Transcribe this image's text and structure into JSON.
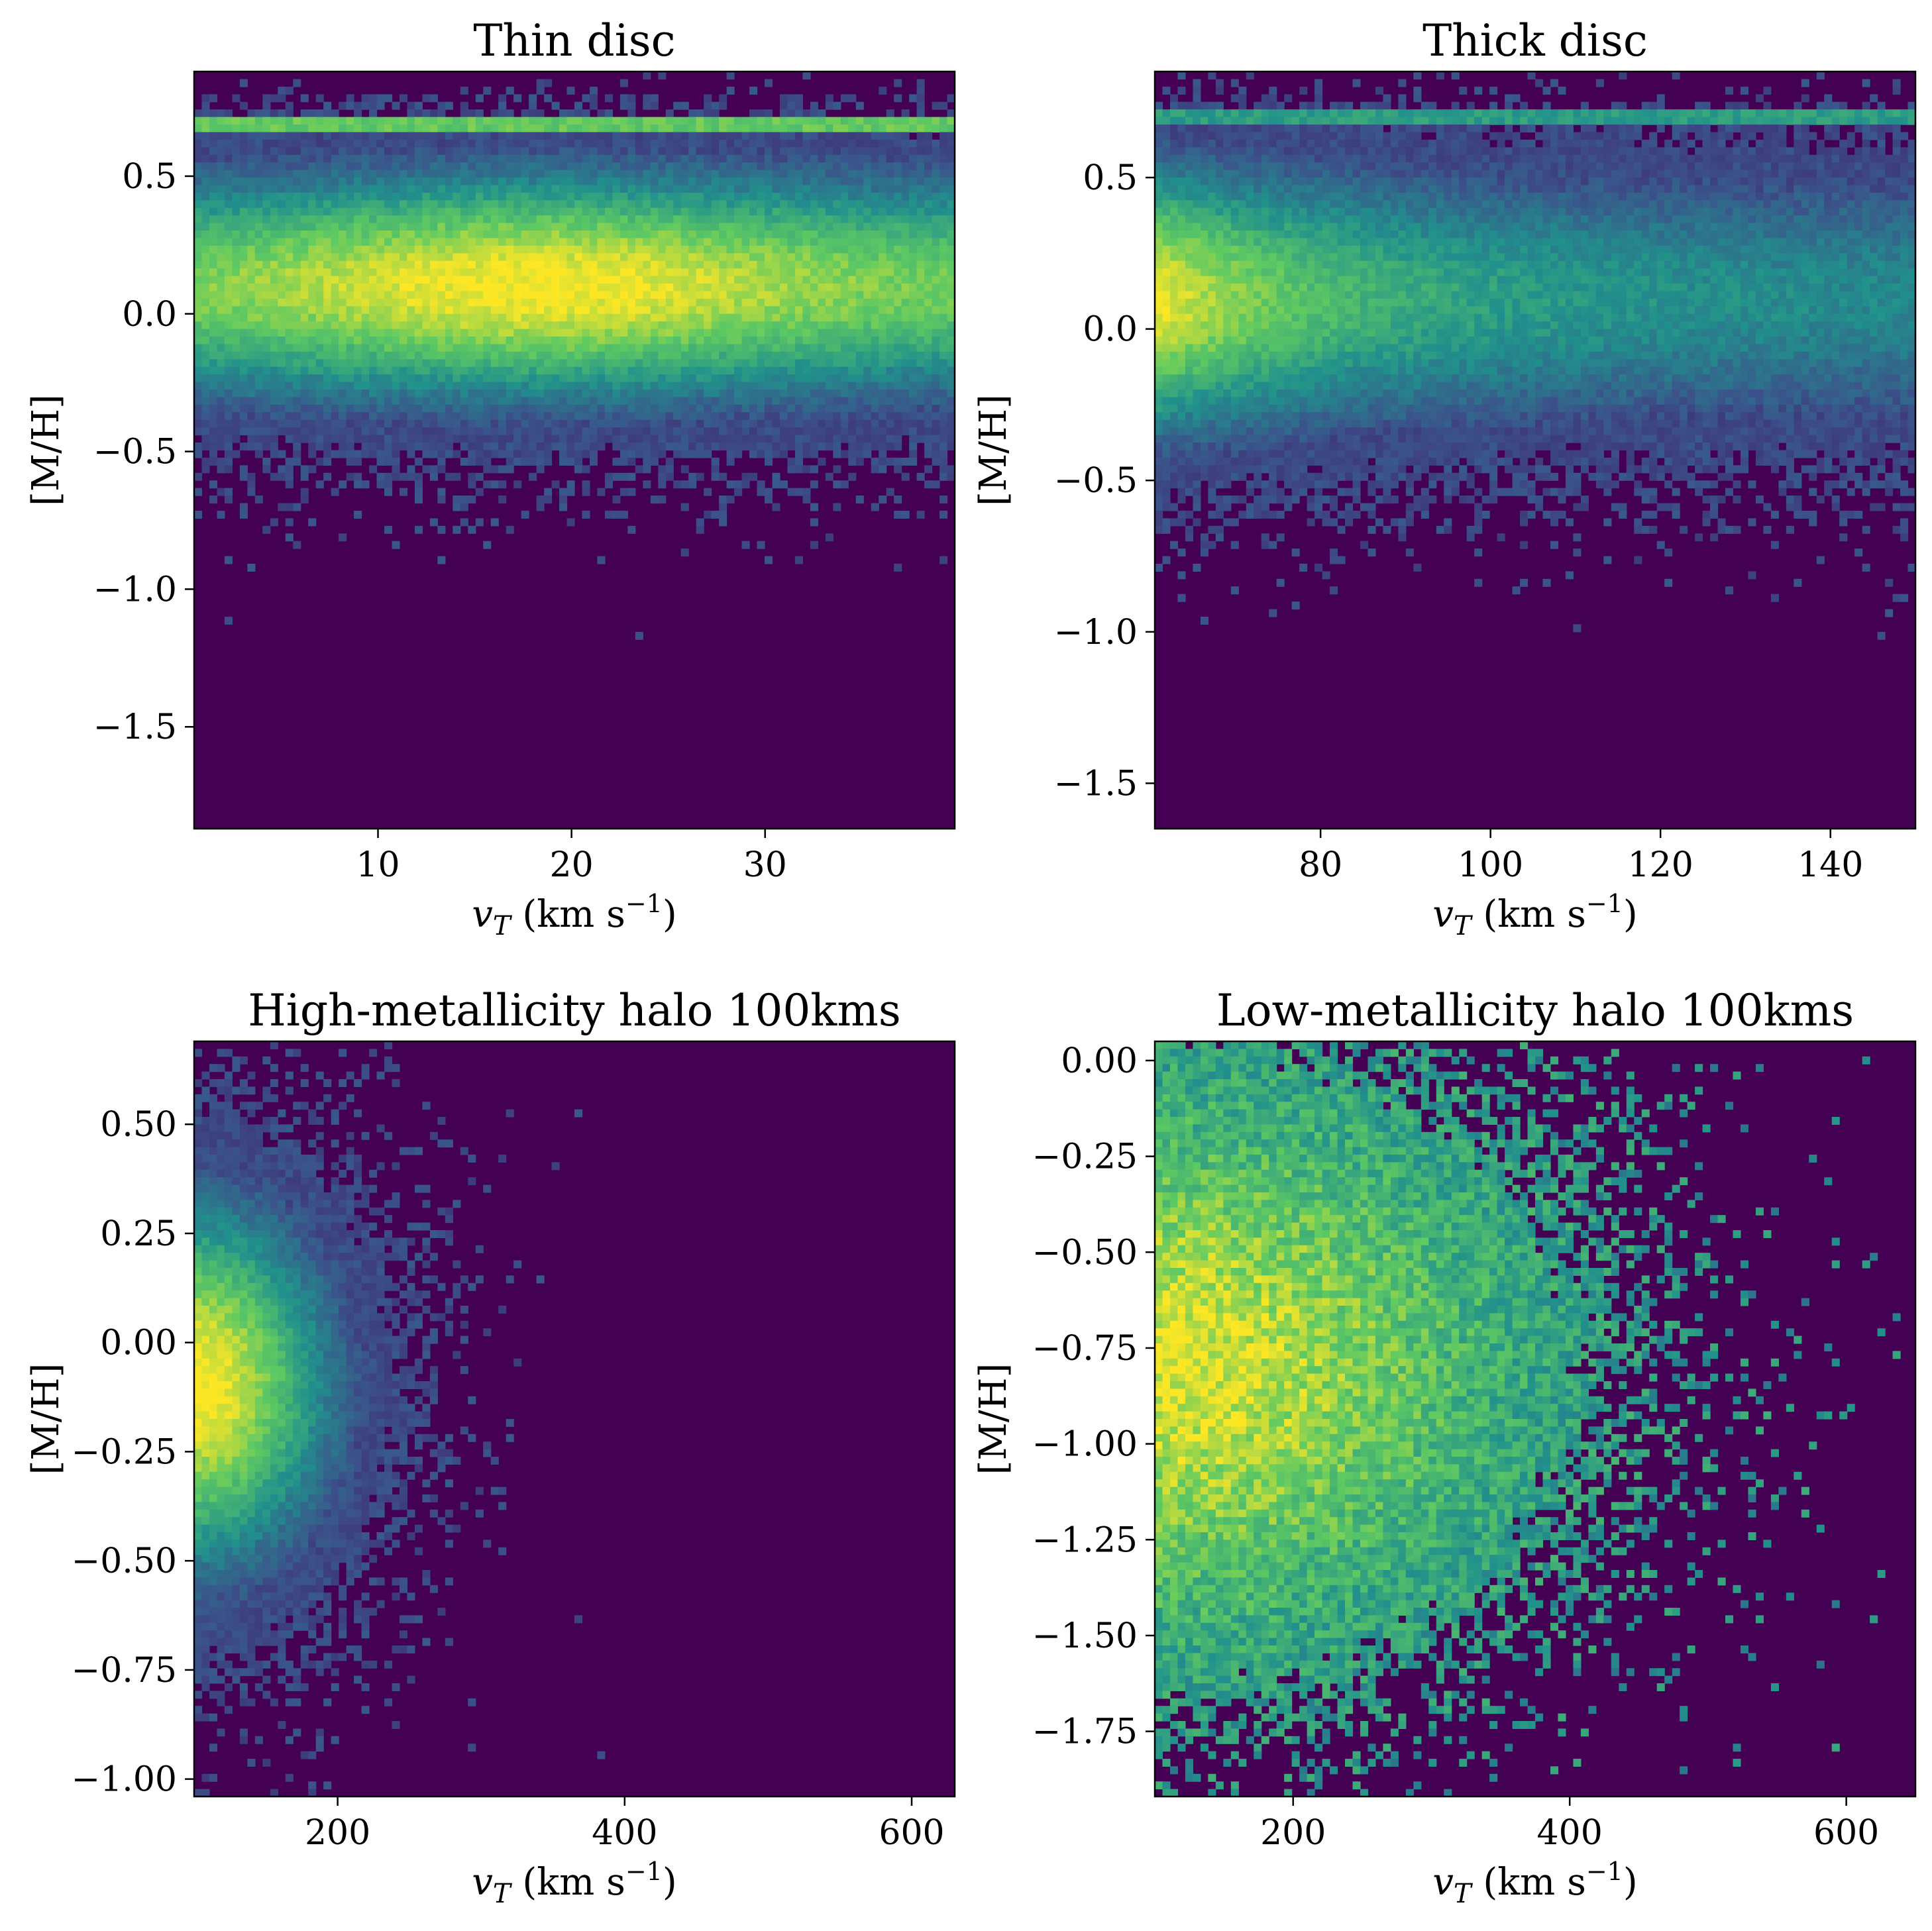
{
  "colormap": {
    "name": "viridis",
    "stops": [
      "#440154",
      "#3b528b",
      "#21918c",
      "#5ec962",
      "#fde725"
    ]
  },
  "chart_data": [
    {
      "id": "thin",
      "type": "heatmap",
      "title": "Thin disc",
      "xlabel": "v_T (km s^-1)",
      "ylabel": "[M/H]",
      "xlim": [
        0.5,
        39.8
      ],
      "ylim": [
        -1.87,
        0.88
      ],
      "xticks": [
        {
          "v": 10,
          "t": "10"
        },
        {
          "v": 20,
          "t": "20"
        },
        {
          "v": 30,
          "t": "30"
        }
      ],
      "yticks": [
        {
          "v": 0.5,
          "t": "0.5"
        },
        {
          "v": 0.0,
          "t": "0.0"
        },
        {
          "v": -0.5,
          "t": "−0.5"
        },
        {
          "v": -1.0,
          "t": "−1.0"
        },
        {
          "v": -1.5,
          "t": "−1.5"
        }
      ],
      "bins": [
        100,
        100
      ],
      "density": {
        "peak_x": 18,
        "peak_y": 0.1,
        "spread_x": 60,
        "spread_y": 0.3,
        "tail_x": 0.0,
        "floor_y": -0.9,
        "stripe_y": 0.7,
        "cut_top": 0.79
      }
    },
    {
      "id": "thick",
      "type": "heatmap",
      "title": "Thick disc",
      "xlabel": "v_T (km s^-1)",
      "ylabel": "[M/H]",
      "xlim": [
        60.5,
        150
      ],
      "ylim": [
        -1.65,
        0.85
      ],
      "xticks": [
        {
          "v": 80,
          "t": "80"
        },
        {
          "v": 100,
          "t": "100"
        },
        {
          "v": 120,
          "t": "120"
        },
        {
          "v": 140,
          "t": "140"
        }
      ],
      "yticks": [
        {
          "v": 0.5,
          "t": "0.5"
        },
        {
          "v": 0.0,
          "t": "0.0"
        },
        {
          "v": -0.5,
          "t": "−0.5"
        },
        {
          "v": -1.0,
          "t": "−1.0"
        },
        {
          "v": -1.5,
          "t": "−1.5"
        }
      ],
      "bins": [
        100,
        100
      ],
      "density": {
        "peak_x": 60,
        "peak_y": 0.1,
        "spread_x": 30,
        "spread_y": 0.32,
        "tail_x": 0.015,
        "floor_y": -0.95,
        "stripe_y": 0.7,
        "cut_top": 0.75
      }
    },
    {
      "id": "highhalo",
      "type": "heatmap",
      "title": "High-metallicity halo 100kms",
      "xlabel": "v_T (km s^-1)",
      "ylabel": "[M/H]",
      "xlim": [
        100,
        630
      ],
      "ylim": [
        -1.04,
        0.69
      ],
      "xticks": [
        {
          "v": 200,
          "t": "200"
        },
        {
          "v": 400,
          "t": "400"
        },
        {
          "v": 600,
          "t": "600"
        }
      ],
      "yticks": [
        {
          "v": 0.5,
          "t": "0.50"
        },
        {
          "v": 0.25,
          "t": "0.25"
        },
        {
          "v": 0.0,
          "t": "0.00"
        },
        {
          "v": -0.25,
          "t": "−0.25"
        },
        {
          "v": -0.5,
          "t": "−0.50"
        },
        {
          "v": -0.75,
          "t": "−0.75"
        },
        {
          "v": -1.0,
          "t": "−1.00"
        }
      ],
      "bins": [
        100,
        100
      ],
      "density": {
        "peak_x": 100,
        "peak_y": -0.1,
        "spread_x": 70,
        "spread_y": 0.3,
        "tail_x": 0.012,
        "floor_y": -1.1,
        "stripe_y": null,
        "cut_top": 0.7
      }
    },
    {
      "id": "lowhalo",
      "type": "heatmap",
      "title": "Low-metallicity halo 100kms",
      "xlabel": "v_T (km s^-1)",
      "ylabel": "[M/H]",
      "xlim": [
        100,
        650
      ],
      "ylim": [
        -1.92,
        0.05
      ],
      "xticks": [
        {
          "v": 200,
          "t": "200"
        },
        {
          "v": 400,
          "t": "400"
        },
        {
          "v": 600,
          "t": "600"
        }
      ],
      "yticks": [
        {
          "v": 0.0,
          "t": "0.00"
        },
        {
          "v": -0.25,
          "t": "−0.25"
        },
        {
          "v": -0.5,
          "t": "−0.50"
        },
        {
          "v": -0.75,
          "t": "−0.75"
        },
        {
          "v": -1.0,
          "t": "−1.00"
        },
        {
          "v": -1.25,
          "t": "−1.25"
        },
        {
          "v": -1.5,
          "t": "−1.50"
        },
        {
          "v": -1.75,
          "t": "−1.75"
        }
      ],
      "bins": [
        100,
        100
      ],
      "density": {
        "peak_x": 110,
        "peak_y": -0.8,
        "spread_x": 150,
        "spread_y": 0.42,
        "tail_x": 0.006,
        "floor_y": -2.0,
        "stripe_y": null,
        "cut_top": 0.1
      }
    }
  ]
}
